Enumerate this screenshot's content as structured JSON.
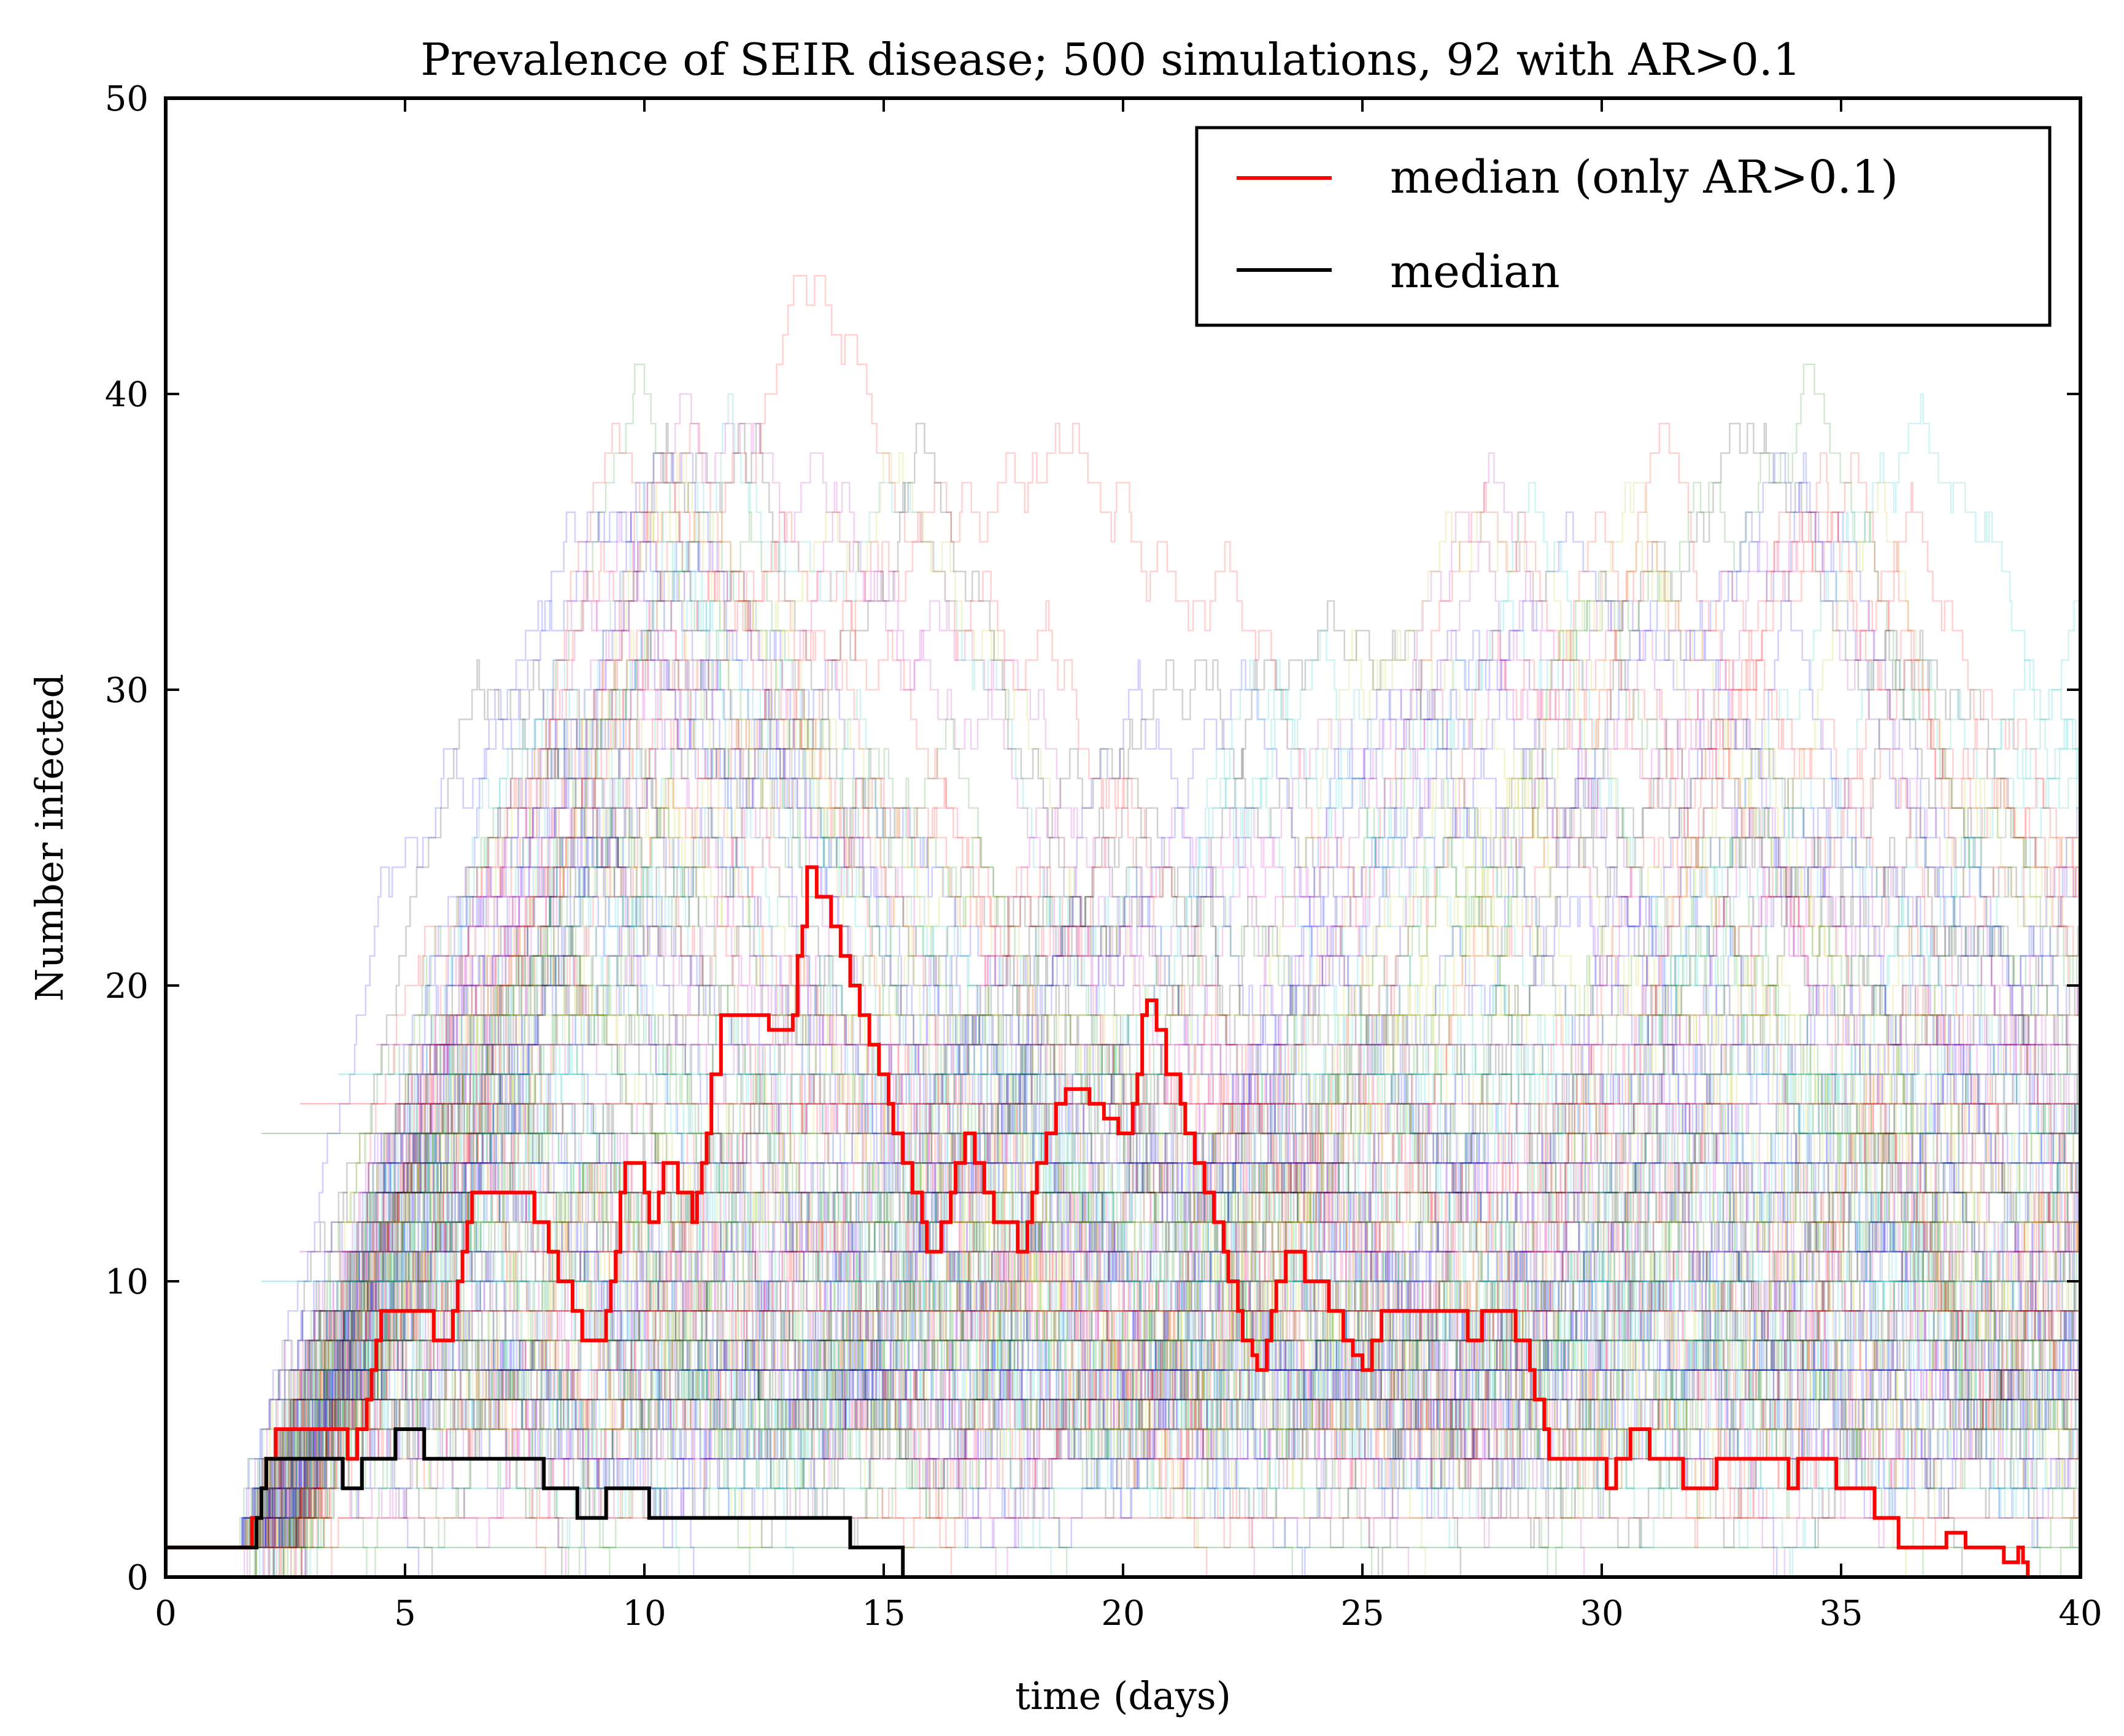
{
  "chart_data": {
    "type": "line",
    "title": "Prevalence of SEIR disease; 500 simulations, 92 with AR>0.1",
    "xlabel": "time (days)",
    "ylabel": "Number infected",
    "xlim": [
      0,
      40
    ],
    "ylim": [
      0,
      50
    ],
    "x_ticks": [
      0,
      5,
      10,
      15,
      20,
      25,
      30,
      35,
      40
    ],
    "y_ticks": [
      0,
      10,
      20,
      30,
      40,
      50
    ],
    "grid": false,
    "legend_position": "top-right",
    "background_trajectories": {
      "count": 500,
      "description_colors": [
        "#0000ff",
        "#008000",
        "#ff0000",
        "#00bfbf",
        "#bf00bf",
        "#bfbf00",
        "#000000"
      ],
      "opacity": 0.18
    },
    "series": [
      {
        "name": "median (only AR>0.1)",
        "color": "#ff0000",
        "points": [
          [
            0,
            1
          ],
          [
            1.6,
            1
          ],
          [
            1.8,
            2
          ],
          [
            2.0,
            3
          ],
          [
            2.1,
            4
          ],
          [
            2.3,
            5
          ],
          [
            3.5,
            5
          ],
          [
            3.7,
            5
          ],
          [
            3.8,
            4
          ],
          [
            4.0,
            5
          ],
          [
            4.2,
            6
          ],
          [
            4.3,
            7
          ],
          [
            4.4,
            8
          ],
          [
            4.5,
            9
          ],
          [
            5.5,
            9
          ],
          [
            5.6,
            8
          ],
          [
            5.9,
            8
          ],
          [
            6.0,
            9
          ],
          [
            6.1,
            10
          ],
          [
            6.2,
            11
          ],
          [
            6.3,
            12
          ],
          [
            6.4,
            13
          ],
          [
            7.5,
            13
          ],
          [
            7.7,
            12
          ],
          [
            7.9,
            12
          ],
          [
            8.0,
            11
          ],
          [
            8.2,
            10
          ],
          [
            8.5,
            9
          ],
          [
            8.7,
            8
          ],
          [
            9.1,
            8
          ],
          [
            9.2,
            9
          ],
          [
            9.3,
            10
          ],
          [
            9.4,
            11
          ],
          [
            9.5,
            13
          ],
          [
            9.6,
            14
          ],
          [
            9.9,
            14
          ],
          [
            10.0,
            13
          ],
          [
            10.1,
            12
          ],
          [
            10.3,
            13
          ],
          [
            10.4,
            14
          ],
          [
            10.6,
            14
          ],
          [
            10.7,
            13
          ],
          [
            11.0,
            12
          ],
          [
            11.1,
            13
          ],
          [
            11.2,
            14
          ],
          [
            11.3,
            15
          ],
          [
            11.4,
            17
          ],
          [
            11.6,
            19
          ],
          [
            12.5,
            19
          ],
          [
            12.6,
            18.5
          ],
          [
            13.0,
            18.5
          ],
          [
            13.1,
            19
          ],
          [
            13.2,
            21
          ],
          [
            13.3,
            22
          ],
          [
            13.4,
            24
          ],
          [
            13.6,
            23
          ],
          [
            13.9,
            22
          ],
          [
            14.1,
            21
          ],
          [
            14.3,
            20
          ],
          [
            14.5,
            19
          ],
          [
            14.7,
            18
          ],
          [
            14.9,
            17
          ],
          [
            15.1,
            16
          ],
          [
            15.2,
            15
          ],
          [
            15.4,
            14
          ],
          [
            15.6,
            13
          ],
          [
            15.8,
            12
          ],
          [
            15.9,
            11
          ],
          [
            16.2,
            12
          ],
          [
            16.4,
            13
          ],
          [
            16.5,
            14
          ],
          [
            16.7,
            15
          ],
          [
            16.9,
            14
          ],
          [
            17.1,
            13
          ],
          [
            17.3,
            12
          ],
          [
            17.7,
            12
          ],
          [
            17.8,
            11
          ],
          [
            18.0,
            12
          ],
          [
            18.1,
            13
          ],
          [
            18.2,
            14
          ],
          [
            18.4,
            15
          ],
          [
            18.6,
            16
          ],
          [
            18.8,
            16.5
          ],
          [
            19.2,
            16.5
          ],
          [
            19.3,
            16
          ],
          [
            19.6,
            15.5
          ],
          [
            19.9,
            15
          ],
          [
            20.2,
            16
          ],
          [
            20.3,
            17
          ],
          [
            20.4,
            19
          ],
          [
            20.5,
            19.5
          ],
          [
            20.7,
            18.5
          ],
          [
            20.9,
            17
          ],
          [
            21.2,
            16
          ],
          [
            21.3,
            15
          ],
          [
            21.5,
            14
          ],
          [
            21.7,
            13
          ],
          [
            21.9,
            12
          ],
          [
            22.1,
            11
          ],
          [
            22.2,
            10
          ],
          [
            22.4,
            9
          ],
          [
            22.5,
            8
          ],
          [
            22.7,
            7.5
          ],
          [
            22.8,
            7
          ],
          [
            23.0,
            8
          ],
          [
            23.1,
            9
          ],
          [
            23.2,
            10
          ],
          [
            23.4,
            11
          ],
          [
            23.7,
            11
          ],
          [
            23.8,
            10
          ],
          [
            24.2,
            10
          ],
          [
            24.3,
            9
          ],
          [
            24.6,
            8
          ],
          [
            24.8,
            7.5
          ],
          [
            25.0,
            7
          ],
          [
            25.2,
            8
          ],
          [
            25.4,
            9
          ],
          [
            27.0,
            9
          ],
          [
            27.2,
            8
          ],
          [
            27.5,
            9
          ],
          [
            28.1,
            9
          ],
          [
            28.2,
            8
          ],
          [
            28.5,
            7
          ],
          [
            28.6,
            6
          ],
          [
            28.8,
            5
          ],
          [
            28.9,
            4
          ],
          [
            30.0,
            4
          ],
          [
            30.1,
            3
          ],
          [
            30.3,
            4
          ],
          [
            30.6,
            5
          ],
          [
            30.9,
            5
          ],
          [
            31.0,
            4
          ],
          [
            31.6,
            4
          ],
          [
            31.7,
            3
          ],
          [
            32.3,
            3
          ],
          [
            32.4,
            4
          ],
          [
            33.8,
            4
          ],
          [
            33.9,
            3
          ],
          [
            34.1,
            4
          ],
          [
            34.8,
            4
          ],
          [
            34.9,
            3
          ],
          [
            35.5,
            3
          ],
          [
            35.7,
            2
          ],
          [
            36.0,
            2
          ],
          [
            36.2,
            1
          ],
          [
            37.0,
            1
          ],
          [
            37.2,
            1.5
          ],
          [
            37.5,
            1.5
          ],
          [
            37.6,
            1
          ],
          [
            38.3,
            1
          ],
          [
            38.4,
            0.5
          ],
          [
            38.6,
            0.5
          ],
          [
            38.7,
            1
          ],
          [
            38.8,
            0.5
          ],
          [
            38.9,
            0
          ]
        ]
      },
      {
        "name": "median",
        "color": "#000000",
        "points": [
          [
            0,
            1
          ],
          [
            1.7,
            1
          ],
          [
            1.9,
            2
          ],
          [
            2.0,
            3
          ],
          [
            2.1,
            4
          ],
          [
            3.6,
            4
          ],
          [
            3.7,
            3
          ],
          [
            4.0,
            3
          ],
          [
            4.1,
            4
          ],
          [
            4.7,
            4
          ],
          [
            4.8,
            5
          ],
          [
            5.3,
            5
          ],
          [
            5.4,
            4
          ],
          [
            7.8,
            4
          ],
          [
            7.9,
            3
          ],
          [
            8.5,
            3
          ],
          [
            8.6,
            2
          ],
          [
            9.1,
            2
          ],
          [
            9.2,
            3
          ],
          [
            10.0,
            3
          ],
          [
            10.1,
            2
          ],
          [
            14.2,
            2
          ],
          [
            14.3,
            1
          ],
          [
            15.3,
            1
          ],
          [
            15.4,
            0
          ]
        ]
      }
    ]
  }
}
